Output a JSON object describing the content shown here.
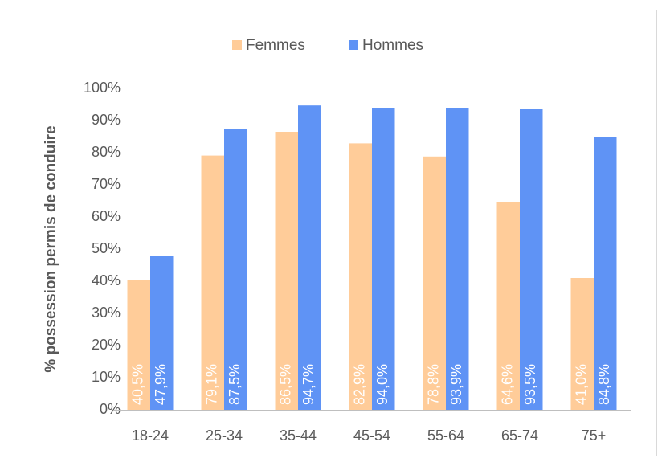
{
  "chart_data": {
    "type": "bar",
    "y_label": "% possession permis de conduire",
    "categories": [
      "18-24",
      "25-34",
      "35-44",
      "45-54",
      "55-64",
      "65-74",
      "75+"
    ],
    "series": [
      {
        "name": "Femmes",
        "color": "#ffcc99",
        "values": [
          40.5,
          79.1,
          86.5,
          82.9,
          78.8,
          64.6,
          41.0
        ],
        "value_labels": [
          "40,5%",
          "79,1%",
          "86,5%",
          "82,9%",
          "78,8%",
          "64,6%",
          "41,0%"
        ]
      },
      {
        "name": "Hommes",
        "color": "#5f93f5",
        "values": [
          47.9,
          87.5,
          94.7,
          94.0,
          93.9,
          93.5,
          84.8
        ],
        "value_labels": [
          "47,9%",
          "87,5%",
          "94,7%",
          "94,0%",
          "93,9%",
          "93,5%",
          "84,8%"
        ]
      }
    ],
    "ylim": [
      0,
      100
    ],
    "yticks": [
      {
        "value": 0,
        "label": "0%"
      },
      {
        "value": 10,
        "label": "10%"
      },
      {
        "value": 20,
        "label": "20%"
      },
      {
        "value": 30,
        "label": "30%"
      },
      {
        "value": 40,
        "label": "40%"
      },
      {
        "value": 50,
        "label": "50%"
      },
      {
        "value": 60,
        "label": "60%"
      },
      {
        "value": 70,
        "label": "70%"
      },
      {
        "value": 80,
        "label": "80%"
      },
      {
        "value": 90,
        "label": "90%"
      },
      {
        "value": 100,
        "label": "100%"
      }
    ],
    "grid": false,
    "legend": "top"
  }
}
